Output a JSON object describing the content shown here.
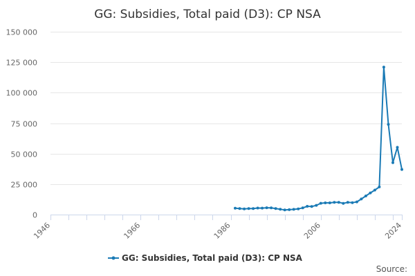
{
  "chart_data": {
    "type": "line",
    "title": "GG: Subsidies, Total paid (D3): CP NSA",
    "xlabel": "",
    "ylabel": "",
    "xlim": [
      1946,
      2024
    ],
    "ylim": [
      0,
      150000
    ],
    "x_ticks": [
      "1946",
      "1966",
      "1986",
      "2006",
      "2024"
    ],
    "y_ticks": [
      "0",
      "25 000",
      "50 000",
      "75 000",
      "100 000",
      "125 000",
      "150 000"
    ],
    "grid": true,
    "legend_position": "bottom-center",
    "series": [
      {
        "name": "GG: Subsidies, Total paid (D3): CP NSA",
        "color": "#1a7ab5",
        "x": [
          1987,
          1988,
          1989,
          1990,
          1991,
          1992,
          1993,
          1994,
          1995,
          1996,
          1997,
          1998,
          1999,
          2000,
          2001,
          2002,
          2003,
          2004,
          2005,
          2006,
          2007,
          2008,
          2009,
          2010,
          2011,
          2012,
          2013,
          2014,
          2015,
          2016,
          2017,
          2018,
          2019,
          2020,
          2021,
          2022,
          2023,
          2024
        ],
        "values": [
          5200,
          5000,
          4700,
          5000,
          5000,
          5400,
          5300,
          5600,
          5500,
          4900,
          4400,
          3800,
          4000,
          4300,
          4700,
          5500,
          6800,
          6600,
          7600,
          9300,
          9600,
          9600,
          10100,
          10100,
          9200,
          10000,
          9800,
          10400,
          12800,
          15300,
          17800,
          20100,
          22700,
          121000,
          74000,
          42600,
          55200,
          37000
        ]
      }
    ]
  },
  "source_label": "Source:"
}
